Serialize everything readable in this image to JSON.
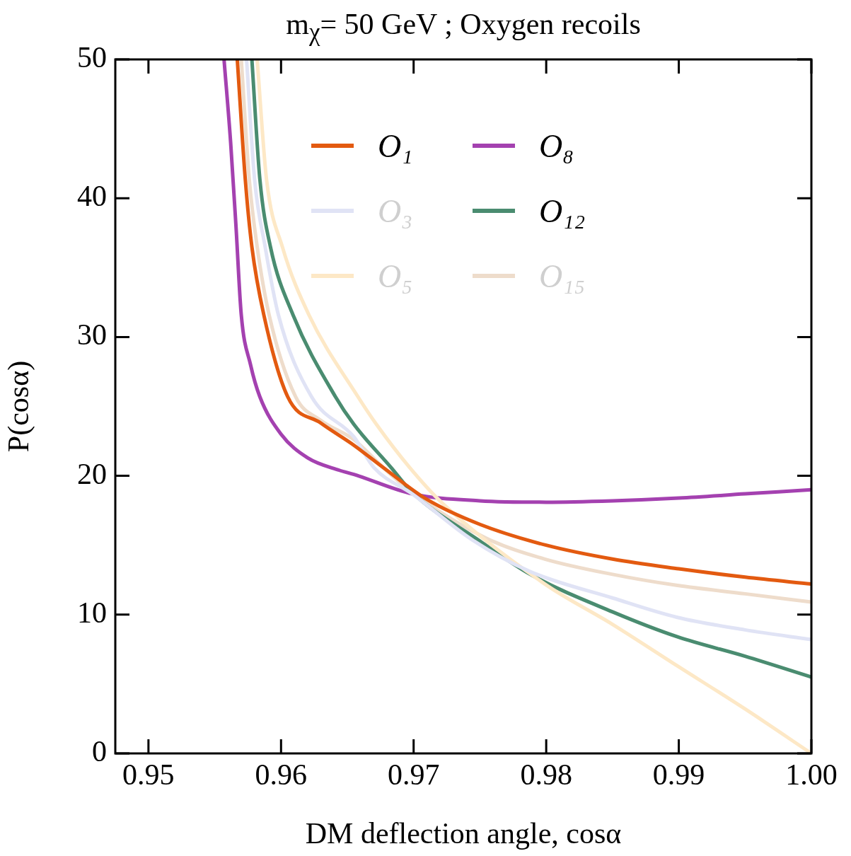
{
  "chart_data": {
    "type": "line",
    "title": "m$_{χ}$= 50 GeV ;  Oxygen recoils",
    "xlabel": "DM deflection angle, cosα",
    "ylabel": "P(cosα)",
    "xlim": [
      0.9475,
      1.0
    ],
    "xticks": [
      0.95,
      0.96,
      0.97,
      0.98,
      0.99,
      {
        "value": 1.0,
        "label": "1.00"
      }
    ],
    "ylim": [
      0,
      50
    ],
    "yticks": [
      0,
      10,
      20,
      30,
      40,
      50
    ],
    "grid": false,
    "legend": "top",
    "marker": "none",
    "line_style": "solid",
    "series": [
      {
        "name": "O₁",
        "color": "#e35a10",
        "x": [
          0.9567,
          0.9573,
          0.9578,
          0.9587,
          0.9605,
          0.963,
          0.9655,
          0.9677,
          0.971,
          0.975,
          0.98,
          0.985,
          0.99,
          0.995,
          1.0
        ],
        "values": [
          50,
          41.4,
          36.5,
          31.6,
          25.7,
          23.8,
          22.2,
          20.6,
          18.3,
          16.5,
          15.0,
          14.0,
          13.3,
          12.7,
          12.2
        ]
      },
      {
        "name": "O₃",
        "color": "#e0e3f5",
        "x": [
          0.9574,
          0.958,
          0.9588,
          0.9598,
          0.9623,
          0.9655,
          0.967,
          0.9699,
          0.9744,
          0.9788,
          0.985,
          0.9899,
          0.995,
          1.0
        ],
        "values": [
          50,
          41.4,
          36.5,
          31.6,
          25.7,
          22.8,
          20.6,
          18.7,
          15.4,
          13.1,
          11.2,
          9.8,
          8.9,
          8.2
        ]
      },
      {
        "name": "O₅",
        "color": "#fde8c6",
        "x": [
          0.9582,
          0.9589,
          0.9601,
          0.9621,
          0.9658,
          0.9672,
          0.9697,
          0.9722,
          0.9799,
          0.985,
          0.9899,
          0.995,
          1.0
        ],
        "values": [
          50,
          41.4,
          36.5,
          31.6,
          25.7,
          23.7,
          20.6,
          18.0,
          12.2,
          9.3,
          6.3,
          3.2,
          0
        ]
      },
      {
        "name": "O₈",
        "color": "#a441b0",
        "x": [
          0.9557,
          0.9562,
          0.9566,
          0.957,
          0.9577,
          0.9584,
          0.96,
          0.962,
          0.9644,
          0.9655,
          0.9699,
          0.975,
          0.98,
          0.985,
          0.99,
          0.995,
          1.0
        ],
        "values": [
          50,
          44,
          38,
          31.6,
          28,
          25.7,
          23,
          21.3,
          20.4,
          20.1,
          18.7,
          18.2,
          18.1,
          18.2,
          18.4,
          18.7,
          19.0
        ]
      },
      {
        "name": "O₁₂",
        "color": "#4a8c70",
        "x": [
          0.9578,
          0.9584,
          0.9592,
          0.9609,
          0.9641,
          0.9655,
          0.9683,
          0.9699,
          0.975,
          0.9788,
          0.985,
          0.9899,
          0.995,
          1.0
        ],
        "values": [
          50,
          41.4,
          36.5,
          31.6,
          25.7,
          23.7,
          20.6,
          18.8,
          15.3,
          12.9,
          10.2,
          8.4,
          7.0,
          5.5
        ]
      },
      {
        "name": "O₁₅",
        "color": "#eedccb",
        "x": [
          0.957,
          0.9576,
          0.9582,
          0.9591,
          0.9611,
          0.963,
          0.9655,
          0.9677,
          0.9699,
          0.9755,
          0.9799,
          0.985,
          0.9899,
          0.995,
          1.0
        ],
        "values": [
          50,
          41.4,
          36.5,
          31.6,
          25.7,
          24.0,
          22.6,
          20.6,
          18.8,
          15.5,
          14.0,
          12.9,
          12.1,
          11.5,
          10.9
        ]
      }
    ]
  }
}
